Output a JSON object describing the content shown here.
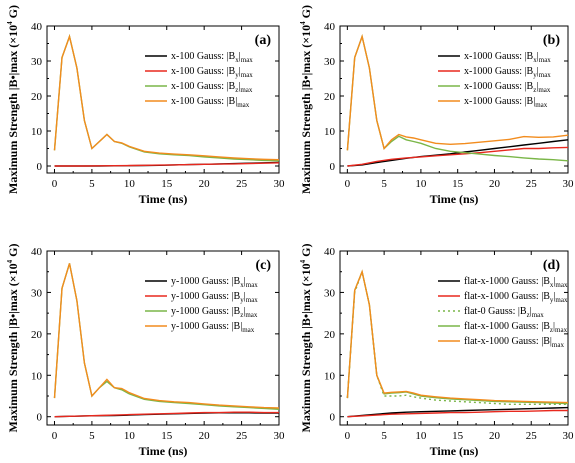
{
  "chart_data": [
    {
      "type": "line",
      "panel_label": "(a)",
      "xlabel": "Time (ns)",
      "ylabel": "Maximum Strength |B•|max (×10",
      "ylabel_sup": "4",
      "ylabel_tail": " G)",
      "xlim": [
        -1,
        30
      ],
      "ylim": [
        -2,
        40
      ],
      "xticks": [
        0,
        5,
        10,
        15,
        20,
        25,
        30
      ],
      "yticks": [
        0,
        10,
        20,
        30,
        40
      ],
      "legend_position": "top-right",
      "series": [
        {
          "prefix": "x-100 Gauss: |B",
          "sub1": "x",
          "mid": "|",
          "sub2": "max",
          "color": "#000000",
          "dash": false,
          "x": [
            0,
            2,
            4,
            6,
            8,
            10,
            12,
            14,
            16,
            18,
            20,
            22,
            24,
            26,
            28,
            30
          ],
          "y": [
            0,
            0,
            0,
            0,
            0.05,
            0.1,
            0.15,
            0.2,
            0.3,
            0.4,
            0.5,
            0.6,
            0.7,
            0.8,
            0.9,
            1.0
          ]
        },
        {
          "prefix": "x-100 Gauss: |B",
          "sub1": "y",
          "mid": "|",
          "sub2": "max",
          "color": "#e8281e",
          "dash": false,
          "x": [
            0,
            2,
            4,
            6,
            8,
            10,
            12,
            14,
            16,
            18,
            20,
            22,
            24,
            26,
            28,
            30
          ],
          "y": [
            0,
            0,
            0,
            0.05,
            0.1,
            0.15,
            0.2,
            0.25,
            0.3,
            0.4,
            0.5,
            0.55,
            0.6,
            0.7,
            0.8,
            0.9
          ]
        },
        {
          "prefix": "x-100 Gauss: |B",
          "sub1": "z",
          "mid": "|",
          "sub2": "max",
          "color": "#7ab648",
          "dash": false,
          "x": [
            0,
            1,
            2,
            3,
            4,
            5,
            6,
            7,
            8,
            9,
            10,
            12,
            14,
            16,
            18,
            20,
            22,
            24,
            26,
            28,
            30
          ],
          "y": [
            4.5,
            31,
            37,
            28,
            13,
            5,
            7,
            9,
            7,
            6.5,
            5.5,
            4,
            3.5,
            3.2,
            3,
            2.6,
            2.3,
            2,
            1.8,
            1.6,
            1.5
          ]
        },
        {
          "prefix": "x-100 Gauss: |B|",
          "sub1": "",
          "mid": "",
          "sub2": "max",
          "color": "#f28c1e",
          "dash": false,
          "x": [
            0,
            1,
            2,
            3,
            4,
            5,
            6,
            7,
            8,
            9,
            10,
            12,
            14,
            16,
            18,
            20,
            22,
            24,
            26,
            28,
            30
          ],
          "y": [
            4.5,
            31,
            37,
            28,
            13,
            5,
            7,
            9,
            7,
            6.6,
            5.6,
            4.2,
            3.7,
            3.4,
            3.2,
            2.9,
            2.6,
            2.3,
            2.1,
            1.9,
            1.8
          ]
        }
      ]
    },
    {
      "type": "line",
      "panel_label": "(b)",
      "xlabel": "Time (ns)",
      "ylabel": "Maximum Strength |B•|max (×10",
      "ylabel_sup": "4",
      "ylabel_tail": " G)",
      "xlim": [
        -1,
        30
      ],
      "ylim": [
        -2,
        40
      ],
      "xticks": [
        0,
        5,
        10,
        15,
        20,
        25,
        30
      ],
      "yticks": [
        0,
        10,
        20,
        30,
        40
      ],
      "legend_position": "top-right",
      "series": [
        {
          "prefix": "x-1000 Gauss: |B",
          "sub1": "x",
          "mid": "|",
          "sub2": "max",
          "color": "#000000",
          "dash": false,
          "x": [
            0,
            2,
            4,
            6,
            8,
            10,
            12,
            14,
            16,
            18,
            20,
            22,
            24,
            26,
            28,
            30
          ],
          "y": [
            0,
            0.3,
            1,
            1.6,
            2.2,
            2.7,
            3.1,
            3.5,
            4,
            4.5,
            5,
            5.5,
            6,
            6.5,
            7,
            7.5
          ]
        },
        {
          "prefix": "x-1000 Gauss: |B",
          "sub1": "y",
          "mid": "|",
          "sub2": "max",
          "color": "#e8281e",
          "dash": false,
          "x": [
            0,
            2,
            4,
            6,
            8,
            10,
            12,
            14,
            16,
            18,
            20,
            22,
            24,
            26,
            28,
            30
          ],
          "y": [
            0,
            0.5,
            1.3,
            1.9,
            2.3,
            2.6,
            2.9,
            3.2,
            3.5,
            3.8,
            4.2,
            4.6,
            5,
            5,
            5.2,
            5.3
          ]
        },
        {
          "prefix": "x-1000 Gauss: |B",
          "sub1": "z",
          "mid": "|",
          "sub2": "max",
          "color": "#7ab648",
          "dash": false,
          "x": [
            0,
            1,
            2,
            3,
            4,
            5,
            6,
            7,
            8,
            9,
            10,
            12,
            14,
            16,
            18,
            20,
            22,
            24,
            26,
            28,
            30
          ],
          "y": [
            4.5,
            31,
            37,
            28,
            13,
            5,
            7,
            8.5,
            7.5,
            7,
            6.5,
            5,
            4.2,
            3.8,
            3.4,
            3,
            2.7,
            2.3,
            2,
            1.8,
            1.5
          ]
        },
        {
          "prefix": "x-1000 Gauss: |B|",
          "sub1": "",
          "mid": "",
          "sub2": "max",
          "color": "#f28c1e",
          "dash": false,
          "x": [
            0,
            1,
            2,
            3,
            4,
            5,
            6,
            7,
            8,
            9,
            10,
            12,
            14,
            16,
            18,
            20,
            22,
            24,
            26,
            28,
            30
          ],
          "y": [
            4.5,
            31,
            37,
            28,
            13,
            5,
            7.5,
            9,
            8.3,
            8,
            7.5,
            6.5,
            6.2,
            6.4,
            6.8,
            7.2,
            7.6,
            8.4,
            8.2,
            8.3,
            8.8
          ]
        }
      ]
    },
    {
      "type": "line",
      "panel_label": "(c)",
      "xlabel": "Time (ns)",
      "ylabel": "Maximum Strength |B•|max (×10",
      "ylabel_sup": "4",
      "ylabel_tail": " G)",
      "xlim": [
        -1,
        30
      ],
      "ylim": [
        -2,
        40
      ],
      "xticks": [
        0,
        5,
        10,
        15,
        20,
        25,
        30
      ],
      "yticks": [
        0,
        10,
        20,
        30,
        40
      ],
      "legend_position": "top-right",
      "series": [
        {
          "prefix": "y-1000 Gauss: |B",
          "sub1": "x",
          "mid": "|",
          "sub2": "max",
          "color": "#000000",
          "dash": false,
          "x": [
            0,
            2,
            4,
            6,
            8,
            10,
            12,
            14,
            16,
            18,
            20,
            22,
            24,
            26,
            28,
            30
          ],
          "y": [
            0,
            0.1,
            0.2,
            0.25,
            0.3,
            0.4,
            0.5,
            0.6,
            0.7,
            0.8,
            0.9,
            0.95,
            0.95,
            0.95,
            0.9,
            0.9
          ]
        },
        {
          "prefix": "y-1000 Gauss: |B",
          "sub1": "y",
          "mid": "|",
          "sub2": "max",
          "color": "#e8281e",
          "dash": false,
          "x": [
            0,
            2,
            4,
            6,
            8,
            10,
            12,
            14,
            16,
            18,
            20,
            22,
            24,
            26,
            28,
            30
          ],
          "y": [
            0,
            0.1,
            0.2,
            0.3,
            0.4,
            0.5,
            0.6,
            0.7,
            0.8,
            0.9,
            1,
            1,
            1.1,
            1.1,
            1,
            1
          ]
        },
        {
          "prefix": "y-1000 Gauss: |B",
          "sub1": "z",
          "mid": "|",
          "sub2": "max",
          "color": "#7ab648",
          "dash": false,
          "x": [
            0,
            1,
            2,
            3,
            4,
            5,
            6,
            7,
            8,
            9,
            10,
            12,
            14,
            16,
            18,
            20,
            22,
            24,
            26,
            28,
            30
          ],
          "y": [
            4.5,
            31,
            37,
            28,
            13,
            5,
            7,
            8.5,
            7,
            6.5,
            5.5,
            4.2,
            3.7,
            3.4,
            3.2,
            2.9,
            2.6,
            2.4,
            2.2,
            2,
            1.8
          ]
        },
        {
          "prefix": "y-1000 Gauss: |B|",
          "sub1": "",
          "mid": "",
          "sub2": "max",
          "color": "#f28c1e",
          "dash": false,
          "x": [
            0,
            1,
            2,
            3,
            4,
            5,
            6,
            7,
            8,
            9,
            10,
            12,
            14,
            16,
            18,
            20,
            22,
            24,
            26,
            28,
            30
          ],
          "y": [
            4.5,
            31,
            37,
            28,
            13,
            5,
            7,
            9,
            7,
            6.8,
            5.8,
            4.4,
            3.9,
            3.6,
            3.4,
            3.1,
            2.8,
            2.6,
            2.4,
            2.2,
            2.1
          ]
        }
      ]
    },
    {
      "type": "line",
      "panel_label": "(d)",
      "xlabel": "Time (ns)",
      "ylabel": "Maximum Strength |B•|max (×10",
      "ylabel_sup": "4",
      "ylabel_tail": " G)",
      "xlim": [
        -1,
        30
      ],
      "ylim": [
        -2,
        40
      ],
      "xticks": [
        0,
        5,
        10,
        15,
        20,
        25,
        30
      ],
      "yticks": [
        0,
        10,
        20,
        30,
        40
      ],
      "legend_position": "top-right",
      "series": [
        {
          "prefix": "flat-x-1000 Gauss: |B",
          "sub1": "x",
          "mid": "|",
          "sub2": "max",
          "color": "#000000",
          "dash": false,
          "x": [
            0,
            2,
            4,
            6,
            8,
            10,
            12,
            14,
            16,
            18,
            20,
            22,
            24,
            26,
            28,
            30
          ],
          "y": [
            0,
            0.3,
            0.6,
            0.9,
            1.1,
            1.2,
            1.3,
            1.4,
            1.5,
            1.6,
            1.7,
            1.8,
            1.9,
            2,
            2.1,
            2.2
          ]
        },
        {
          "prefix": "flat-x-1000 Gauss: |B",
          "sub1": "y",
          "mid": "|",
          "sub2": "max",
          "color": "#e8281e",
          "dash": false,
          "x": [
            0,
            2,
            4,
            6,
            8,
            10,
            12,
            14,
            16,
            18,
            20,
            22,
            24,
            26,
            28,
            30
          ],
          "y": [
            0,
            0.2,
            0.4,
            0.6,
            0.7,
            0.8,
            0.9,
            1,
            1,
            1.1,
            1.2,
            1.3,
            1.3,
            1.4,
            1.5,
            1.5
          ]
        },
        {
          "prefix": "flat-0 Gauss: |B",
          "sub1": "z",
          "mid": "|",
          "sub2": "max",
          "color": "#7ab648",
          "dash": true,
          "x": [
            0,
            1,
            2,
            3,
            4,
            5,
            6,
            7,
            8,
            9,
            10,
            12,
            14,
            16,
            18,
            20,
            22,
            24,
            26,
            28,
            30
          ],
          "y": [
            4.5,
            30,
            35,
            27,
            10,
            5,
            5,
            5,
            5.2,
            4.8,
            4.5,
            4,
            3.8,
            3.6,
            3.4,
            3.2,
            3,
            3,
            3,
            3,
            3
          ]
        },
        {
          "prefix": "flat-x-1000 Gauss: |B",
          "sub1": "z",
          "mid": "|",
          "sub2": "max",
          "color": "#7ab648",
          "dash": false,
          "x": [
            0,
            1,
            2,
            3,
            4,
            5,
            6,
            7,
            8,
            9,
            10,
            12,
            14,
            16,
            18,
            20,
            22,
            24,
            26,
            28,
            30
          ],
          "y": [
            4.5,
            30.5,
            35,
            27,
            10,
            5.5,
            5.7,
            5.8,
            6,
            5.5,
            5,
            4.6,
            4.3,
            4.1,
            3.9,
            3.7,
            3.6,
            3.5,
            3.4,
            3.3,
            3.2
          ]
        },
        {
          "prefix": "flat-x-1000 Gauss: |B|",
          "sub1": "",
          "mid": "",
          "sub2": "max",
          "color": "#f28c1e",
          "dash": false,
          "x": [
            0,
            1,
            2,
            3,
            4,
            5,
            6,
            7,
            8,
            9,
            10,
            12,
            14,
            16,
            18,
            20,
            22,
            24,
            26,
            28,
            30
          ],
          "y": [
            4.5,
            30.5,
            35,
            27,
            10,
            5.7,
            5.9,
            6,
            6.1,
            5.7,
            5.2,
            4.8,
            4.5,
            4.3,
            4.1,
            3.9,
            3.8,
            3.7,
            3.6,
            3.5,
            3.4
          ]
        }
      ]
    }
  ]
}
